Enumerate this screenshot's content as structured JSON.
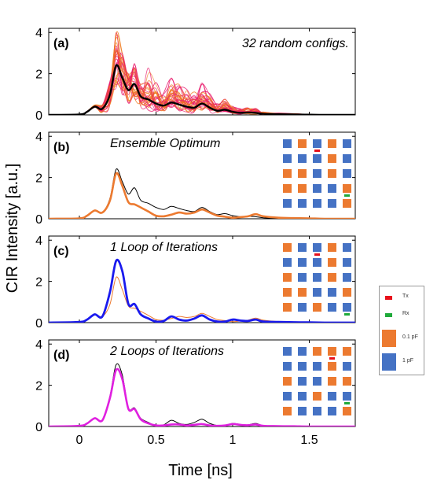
{
  "figure": {
    "ylabel": "CIR Intensity [a.u.]",
    "xlabel": "Time [ns]",
    "xticks": [
      "0",
      "0.5",
      "1",
      "1.5"
    ],
    "yticks": [
      "0",
      "2",
      "4"
    ]
  },
  "legend": {
    "items": [
      {
        "label": "Tx",
        "color": "#e8101a"
      },
      {
        "label": "Rx",
        "color": "#1faa3a"
      },
      {
        "label": "0.1 pF",
        "color": "#ec7a30"
      },
      {
        "label": "1 pF",
        "color": "#4572c4"
      }
    ]
  },
  "colors": {
    "orange": "#ec7a30",
    "blue": "#4572c4",
    "tx": "#e8101a",
    "rx": "#1faa3a",
    "black": "#000000",
    "bold_blue": "#1a1aee",
    "magenta": "#e020e0"
  },
  "chart_data": [
    {
      "type": "line",
      "panel_label": "(a)",
      "annotation": "32 random configs.",
      "xlim": [
        -0.2,
        1.8
      ],
      "ylim": [
        0,
        4.2
      ],
      "xticks": [
        0,
        0.5,
        1,
        1.5
      ],
      "yticks": [
        0,
        2,
        4
      ],
      "grid": false,
      "series": [
        {
          "x": [
            -0.2,
            0,
            0.05,
            0.1,
            0.15,
            0.2,
            0.24,
            0.28,
            0.32,
            0.36,
            0.4,
            0.45,
            0.5,
            0.55,
            0.6,
            0.65,
            0.7,
            0.75,
            0.8,
            0.85,
            0.9,
            0.95,
            1.0,
            1.05,
            1.1,
            1.15,
            1.2,
            1.3,
            1.4,
            1.5,
            1.6,
            1.8
          ],
          "y": [
            0,
            0.02,
            0.15,
            0.4,
            0.3,
            1.0,
            2.4,
            1.8,
            1.2,
            1.5,
            0.9,
            0.75,
            0.55,
            0.45,
            0.6,
            0.5,
            0.4,
            0.35,
            0.55,
            0.35,
            0.2,
            0.25,
            0.15,
            0.1,
            0.12,
            0.1,
            0.05,
            0.03,
            0.02,
            0.01,
            0.0,
            0.0
          ],
          "role": "mean"
        }
      ],
      "ensemble": {
        "count": 32,
        "peak_max": 4.0,
        "colors": [
          "#e8176a",
          "#f07a1e"
        ]
      }
    },
    {
      "type": "line",
      "panel_label": "(b)",
      "annotation": "Ensemble Optimum",
      "xlim": [
        -0.2,
        1.8
      ],
      "ylim": [
        0,
        4.2
      ],
      "xticks": [
        0,
        0.5,
        1,
        1.5
      ],
      "yticks": [
        0,
        2,
        4
      ],
      "grid": false,
      "series": [
        {
          "x": [
            -0.2,
            0,
            0.05,
            0.1,
            0.15,
            0.2,
            0.24,
            0.28,
            0.32,
            0.36,
            0.4,
            0.45,
            0.5,
            0.55,
            0.6,
            0.65,
            0.7,
            0.75,
            0.8,
            0.85,
            0.9,
            0.95,
            1.0,
            1.05,
            1.1,
            1.15,
            1.2,
            1.3,
            1.4,
            1.5,
            1.6,
            1.8
          ],
          "y": [
            0,
            0.02,
            0.15,
            0.4,
            0.3,
            1.0,
            2.4,
            1.8,
            1.2,
            1.5,
            0.9,
            0.75,
            0.55,
            0.45,
            0.6,
            0.5,
            0.4,
            0.35,
            0.55,
            0.35,
            0.2,
            0.25,
            0.15,
            0.1,
            0.12,
            0.1,
            0.05,
            0.03,
            0.02,
            0.01,
            0.0,
            0.0
          ],
          "role": "reference"
        },
        {
          "x": [
            -0.2,
            0,
            0.05,
            0.1,
            0.15,
            0.2,
            0.24,
            0.28,
            0.32,
            0.36,
            0.4,
            0.45,
            0.5,
            0.55,
            0.6,
            0.65,
            0.7,
            0.75,
            0.8,
            0.85,
            0.9,
            0.95,
            1.0,
            1.05,
            1.1,
            1.15,
            1.2,
            1.3,
            1.4,
            1.5,
            1.6,
            1.8
          ],
          "y": [
            0,
            0.02,
            0.15,
            0.4,
            0.3,
            0.9,
            2.2,
            1.6,
            0.8,
            0.7,
            0.55,
            0.35,
            0.15,
            0.12,
            0.2,
            0.3,
            0.25,
            0.3,
            0.45,
            0.3,
            0.15,
            0.1,
            0.05,
            0.08,
            0.12,
            0.22,
            0.12,
            0.05,
            0.03,
            0.02,
            0.0,
            0.0
          ],
          "role": "optimized"
        }
      ],
      "metasurface": {
        "rows": 5,
        "cols": 5,
        "pattern": [
          [
            "b",
            "o",
            "b",
            "o",
            "b"
          ],
          [
            "b",
            "b",
            "b",
            "o",
            "b"
          ],
          [
            "o",
            "o",
            "b",
            "o",
            "b"
          ],
          [
            "o",
            "o",
            "b",
            "b",
            "o"
          ],
          [
            "b",
            "b",
            "b",
            "b",
            "o"
          ]
        ],
        "tx": [
          0,
          2
        ],
        "rx": [
          3,
          4
        ]
      }
    },
    {
      "type": "line",
      "panel_label": "(c)",
      "annotation": "1 Loop of Iterations",
      "xlim": [
        -0.2,
        1.8
      ],
      "ylim": [
        0,
        4.2
      ],
      "xticks": [
        0,
        0.5,
        1,
        1.5
      ],
      "yticks": [
        0,
        2,
        4
      ],
      "grid": false,
      "series": [
        {
          "x": [
            -0.2,
            0,
            0.05,
            0.1,
            0.15,
            0.2,
            0.24,
            0.28,
            0.32,
            0.36,
            0.4,
            0.45,
            0.5,
            0.55,
            0.6,
            0.65,
            0.7,
            0.75,
            0.8,
            0.85,
            0.9,
            0.95,
            1.0,
            1.05,
            1.1,
            1.15,
            1.2,
            1.3,
            1.4,
            1.5,
            1.6,
            1.8
          ],
          "y": [
            0,
            0.02,
            0.15,
            0.4,
            0.3,
            0.9,
            2.2,
            1.6,
            0.8,
            0.7,
            0.55,
            0.35,
            0.15,
            0.12,
            0.2,
            0.3,
            0.25,
            0.3,
            0.45,
            0.3,
            0.15,
            0.1,
            0.05,
            0.08,
            0.12,
            0.22,
            0.12,
            0.05,
            0.03,
            0.02,
            0.0,
            0.0
          ],
          "role": "reference"
        },
        {
          "x": [
            -0.2,
            0,
            0.05,
            0.1,
            0.15,
            0.2,
            0.24,
            0.28,
            0.32,
            0.36,
            0.4,
            0.45,
            0.5,
            0.55,
            0.6,
            0.65,
            0.7,
            0.75,
            0.8,
            0.85,
            0.9,
            0.95,
            1.0,
            1.05,
            1.1,
            1.15,
            1.2,
            1.3,
            1.4,
            1.5,
            1.6,
            1.8
          ],
          "y": [
            0,
            0.03,
            0.15,
            0.4,
            0.3,
            1.5,
            3.0,
            2.5,
            0.9,
            0.9,
            0.4,
            0.2,
            0.05,
            0.08,
            0.3,
            0.15,
            0.1,
            0.2,
            0.35,
            0.15,
            0.05,
            0.05,
            0.15,
            0.1,
            0.08,
            0.15,
            0.05,
            0.03,
            0.02,
            0.01,
            0.0,
            0.0
          ],
          "role": "optimized"
        }
      ],
      "metasurface": {
        "rows": 5,
        "cols": 5,
        "pattern": [
          [
            "o",
            "b",
            "b",
            "o",
            "b"
          ],
          [
            "b",
            "b",
            "b",
            "o",
            "b"
          ],
          [
            "o",
            "b",
            "b",
            "o",
            "b"
          ],
          [
            "o",
            "o",
            "b",
            "b",
            "o"
          ],
          [
            "o",
            "b",
            "o",
            "b",
            "b"
          ]
        ],
        "tx": [
          0,
          2
        ],
        "rx": [
          4,
          4
        ]
      }
    },
    {
      "type": "line",
      "panel_label": "(d)",
      "annotation": "2 Loops of Iterations",
      "xlim": [
        -0.2,
        1.8
      ],
      "ylim": [
        0,
        4.2
      ],
      "xticks": [
        0,
        0.5,
        1,
        1.5
      ],
      "yticks": [
        0,
        2,
        4
      ],
      "grid": false,
      "series": [
        {
          "x": [
            -0.2,
            0,
            0.05,
            0.1,
            0.15,
            0.2,
            0.24,
            0.28,
            0.32,
            0.36,
            0.4,
            0.45,
            0.5,
            0.55,
            0.6,
            0.65,
            0.7,
            0.75,
            0.8,
            0.85,
            0.9,
            0.95,
            1.0,
            1.05,
            1.1,
            1.15,
            1.2,
            1.3,
            1.4,
            1.5,
            1.6,
            1.8
          ],
          "y": [
            0,
            0.03,
            0.15,
            0.4,
            0.3,
            1.5,
            3.0,
            2.5,
            0.9,
            0.9,
            0.4,
            0.2,
            0.05,
            0.08,
            0.3,
            0.15,
            0.1,
            0.2,
            0.35,
            0.15,
            0.05,
            0.05,
            0.15,
            0.1,
            0.08,
            0.15,
            0.05,
            0.03,
            0.02,
            0.01,
            0.0,
            0.0
          ],
          "role": "reference"
        },
        {
          "x": [
            -0.2,
            0,
            0.05,
            0.1,
            0.15,
            0.2,
            0.24,
            0.28,
            0.32,
            0.36,
            0.4,
            0.45,
            0.5,
            0.55,
            0.6,
            0.65,
            0.7,
            0.75,
            0.8,
            0.85,
            0.9,
            0.95,
            1.0,
            1.05,
            1.1,
            1.15,
            1.2,
            1.3,
            1.4,
            1.5,
            1.6,
            1.8
          ],
          "y": [
            0,
            0.03,
            0.15,
            0.4,
            0.3,
            1.4,
            2.75,
            2.3,
            0.85,
            0.85,
            0.35,
            0.15,
            0.05,
            0.05,
            0.1,
            0.1,
            0.05,
            0.08,
            0.12,
            0.05,
            0.03,
            0.05,
            0.12,
            0.08,
            0.06,
            0.1,
            0.03,
            0.02,
            0.01,
            0.0,
            0.0,
            0.0
          ],
          "role": "optimized"
        }
      ],
      "metasurface": {
        "rows": 5,
        "cols": 5,
        "pattern": [
          [
            "b",
            "b",
            "o",
            "o",
            "o"
          ],
          [
            "b",
            "b",
            "b",
            "o",
            "b"
          ],
          [
            "o",
            "b",
            "b",
            "o",
            "o"
          ],
          [
            "b",
            "b",
            "o",
            "b",
            "b"
          ],
          [
            "o",
            "b",
            "b",
            "b",
            "o"
          ]
        ],
        "tx": [
          0,
          3
        ],
        "rx": [
          3,
          4
        ]
      }
    }
  ]
}
